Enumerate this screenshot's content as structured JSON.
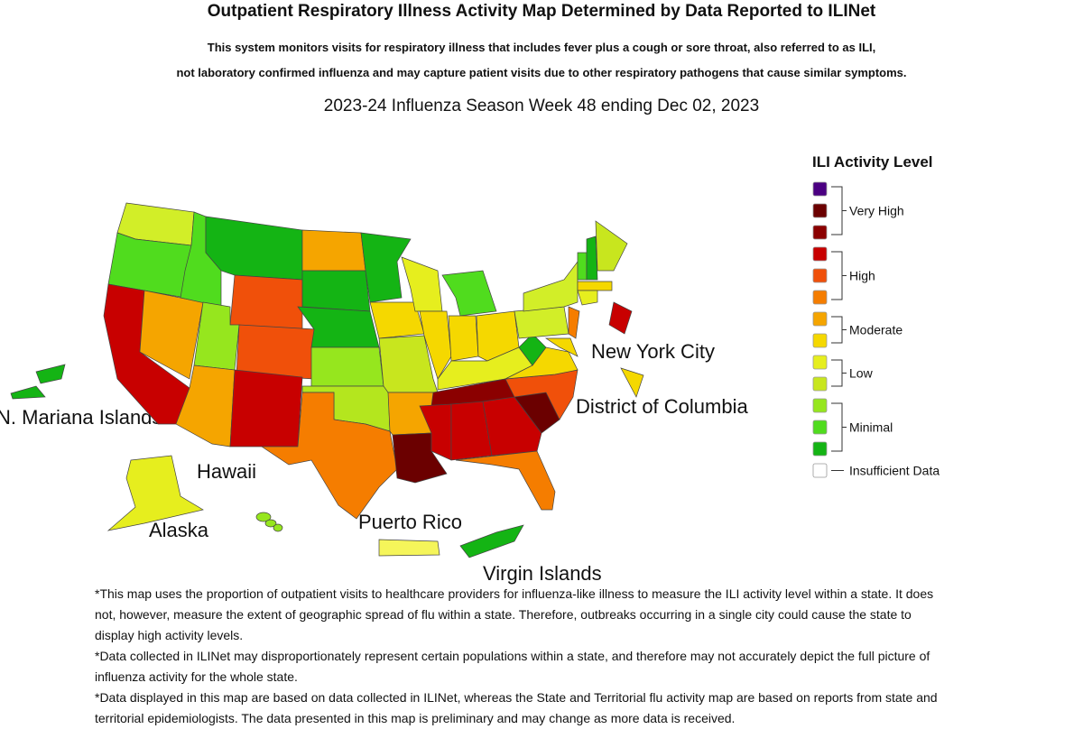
{
  "header": {
    "title": "Outpatient Respiratory Illness Activity Map Determined by Data Reported to ILINet",
    "description": [
      "This system monitors visits for respiratory illness that includes fever plus a cough or sore throat, also referred to as ILI,",
      "not laboratory confirmed influenza and may capture patient visits due to other respiratory pathogens that cause similar symptoms."
    ],
    "week": "2023-24 Influenza Season Week 48 ending Dec 02, 2023"
  },
  "legend": {
    "title": "ILI Activity Level",
    "groups": [
      {
        "name": "Very High",
        "colors": [
          "#4b0082",
          "#6b0000",
          "#8b0000"
        ]
      },
      {
        "name": "High",
        "colors": [
          "#c80000",
          "#f0500a",
          "#f57d00"
        ]
      },
      {
        "name": "Moderate",
        "colors": [
          "#f5a500",
          "#f5d800"
        ]
      },
      {
        "name": "Low",
        "colors": [
          "#e6ee1e",
          "#c8e61e"
        ]
      },
      {
        "name": "Minimal",
        "colors": [
          "#96e61e",
          "#50dc1e",
          "#14b414"
        ]
      },
      {
        "name": "Insufficient Data",
        "colors": [
          "#ffffff"
        ]
      }
    ]
  },
  "map_labels": [
    "N. Mariana Islands",
    "Hawaii",
    "Alaska",
    "Puerto Rico",
    "Virgin Islands",
    "New York City",
    "District of Columbia"
  ],
  "footnotes": [
    "*This map uses the proportion of outpatient visits to healthcare providers for influenza-like illness to measure the ILI activity level within a state. It does not, however, measure the extent of geographic spread of flu within a state. Therefore, outbreaks occurring in a single city could cause the state to display high activity levels.",
    "*Data collected in ILINet may disproportionately represent certain populations within a state, and therefore may not accurately depict the full picture of influenza activity for the whole state.",
    "*Data displayed in this map are based on data collected in ILINet, whereas the State and Territorial flu activity map are based on reports from state and territorial epidemiologists. The data presented in this map is preliminary and may change as more data is received."
  ]
}
